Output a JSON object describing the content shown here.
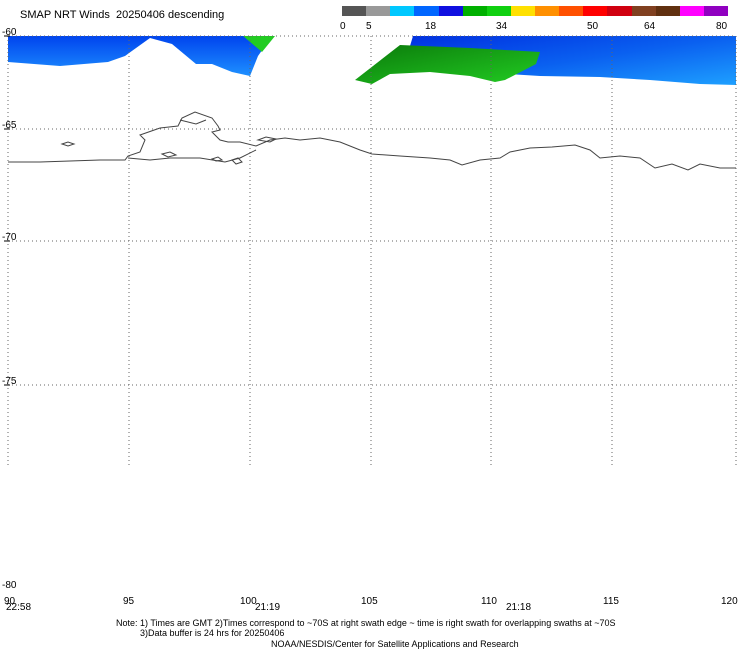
{
  "title": {
    "product": "SMAP NRT Winds",
    "date": "20250406",
    "pass": "descending"
  },
  "colorbar": {
    "labels": [
      "0",
      "5",
      "18",
      "34",
      "50",
      "64",
      "80"
    ],
    "colors": [
      "#555555",
      "#999999",
      "#00c8ff",
      "#0066ff",
      "#1010e0",
      "#00b000",
      "#10d010",
      "#ffe000",
      "#ff9000",
      "#ff5000",
      "#ff0000",
      "#d00010",
      "#804020",
      "#603010",
      "#ff00ff",
      "#9000c0"
    ]
  },
  "map": {
    "lat_labels": [
      "-60",
      "-65",
      "-70",
      "-75",
      "-80"
    ],
    "lon_labels": [
      "90",
      "95",
      "100",
      "105",
      "110",
      "115",
      "120"
    ],
    "swath_times": [
      "22:58",
      "21:19",
      "21:18"
    ],
    "colors": {
      "low_wind": "#1e90ff",
      "moderate_wind": "#0044ee",
      "strong_wind": "#119911",
      "grid": "#666666",
      "coastline": "#444444"
    }
  },
  "notes": {
    "line1": "Note: 1) Times are GMT 2)Times correspond to ~70S at right swath edge ~ time is right swath for overlapping swaths at ~70S",
    "line2": "3)Data buffer is 24 hrs for 20250406",
    "credit": "NOAA/NESDIS/Center for Satellite Applications and Research"
  }
}
